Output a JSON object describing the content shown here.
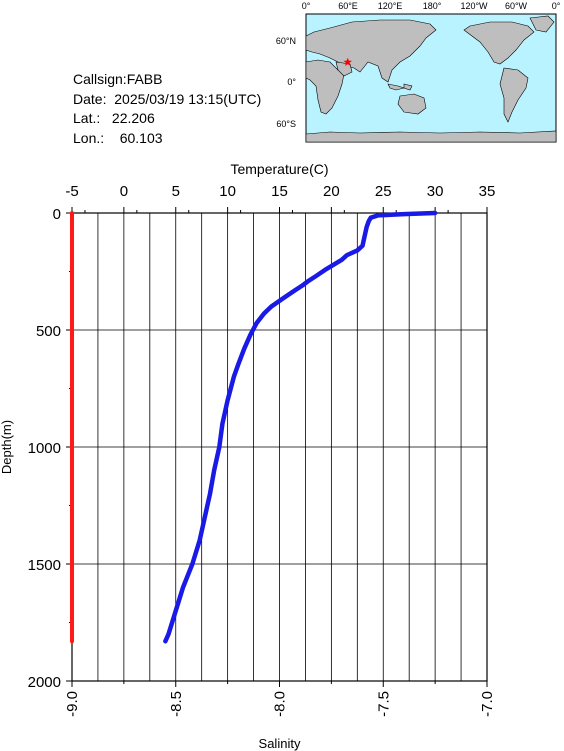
{
  "info": {
    "callsign": "Callsign:FABB",
    "date": "Date:  2025/03/19 13:15(UTC)",
    "lat": "Lat.:   22.206",
    "lon": "Lon.:    60.103"
  },
  "map": {
    "lon_labels": [
      "0°",
      "60°E",
      "120°E",
      "180°",
      "120°W",
      "60°W",
      "0°"
    ],
    "lat_labels": [
      "60°N",
      "0°",
      "60°S"
    ],
    "ocean_color": "#b9f3ff",
    "land_color": "#bebebe",
    "marker_color": "#ff0000",
    "marker": {
      "lat": 22.206,
      "lon": 60.103
    }
  },
  "chart_data": {
    "type": "line",
    "ylabel": "Depth(m)",
    "ylim": [
      0,
      2000
    ],
    "yticks": [
      "0",
      "500",
      "1000",
      "1500",
      "2000"
    ],
    "y_inverted": true,
    "grid": true,
    "top_axis": {
      "label": "Temperature(C)",
      "range": [
        -5,
        35
      ],
      "ticks": [
        "-5",
        "0",
        "5",
        "10",
        "15",
        "20",
        "25",
        "30",
        "35"
      ]
    },
    "bottom_axis": {
      "label": "Salinity",
      "range": [
        -9.0,
        -7.0
      ],
      "ticks": [
        "-9.0",
        "-8.5",
        "-8.0",
        "-7.5",
        "-7.0"
      ]
    },
    "series": [
      {
        "axis": "temperature",
        "color": "#1a1ae6",
        "depth": [
          0,
          5,
          10,
          20,
          35,
          60,
          100,
          140,
          160,
          180,
          200,
          240,
          270,
          290,
          310,
          330,
          360,
          400,
          430,
          470,
          520,
          580,
          650,
          700,
          800,
          900,
          1000,
          1100,
          1200,
          1300,
          1400,
          1500,
          1600,
          1700,
          1800,
          1830
        ],
        "value": [
          30.0,
          27.0,
          24.5,
          23.8,
          23.6,
          23.4,
          23.2,
          23.0,
          22.5,
          21.5,
          21.0,
          19.5,
          18.5,
          17.8,
          17.2,
          16.5,
          15.5,
          14.2,
          13.5,
          12.8,
          12.2,
          11.6,
          11.0,
          10.6,
          10.0,
          9.5,
          9.2,
          8.7,
          8.3,
          7.8,
          7.3,
          6.6,
          5.7,
          5.0,
          4.3,
          4.0
        ]
      },
      {
        "axis": "salinity",
        "color": "#ff1a1a",
        "depth": [
          0,
          1830
        ],
        "value": [
          -9.0,
          -9.0
        ]
      }
    ]
  }
}
